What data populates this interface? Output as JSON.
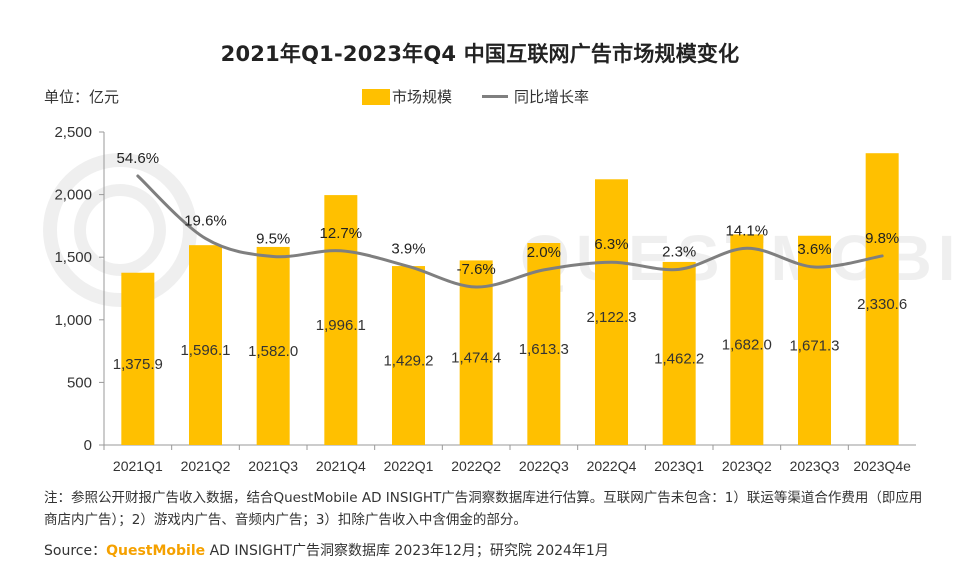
{
  "title": "2021年Q1-2023年Q4 中国互联网广告市场规模变化",
  "unit_label": "单位：亿元",
  "legend": {
    "bar_label": "市场规模",
    "line_label": "同比增长率"
  },
  "colors": {
    "bar": "#ffc000",
    "line": "#7f7f7f"
  },
  "watermark_icon": "questmobile-watermark-logo",
  "note": "注：参照公开财报广告收入数据，结合QuestMobile AD INSIGHT广告洞察数据库进行估算。互联网广告未包含：1）联运等渠道合作费用（即应用商店内广告）；2）游戏内广告、音频内广告；3）扣除广告收入中含佣金的部分。",
  "source": {
    "prefix": "Source：",
    "brand": "QuestMobile",
    "rest": " AD INSIGHT广告洞察数据库 2023年12月；研究院 2024年1月"
  },
  "chart_data": {
    "type": "bar",
    "categories": [
      "2021Q1",
      "2021Q2",
      "2021Q3",
      "2021Q4",
      "2022Q1",
      "2022Q2",
      "2022Q3",
      "2022Q4",
      "2023Q1",
      "2023Q2",
      "2023Q3",
      "2023Q4e"
    ],
    "series": [
      {
        "name": "市场规模",
        "type": "bar",
        "values": [
          1375.9,
          1596.1,
          1582.0,
          1996.1,
          1429.2,
          1474.4,
          1613.3,
          2122.3,
          1462.2,
          1682.0,
          1671.3,
          2330.6
        ],
        "labels": [
          "1,375.9",
          "1,596.1",
          "1,582.0",
          "1,996.1",
          "1,429.2",
          "1,474.4",
          "1,613.3",
          "2,122.3",
          "1,462.2",
          "1,682.0",
          "1,671.3",
          "2,330.6"
        ]
      },
      {
        "name": "同比增长率",
        "type": "line",
        "values": [
          54.6,
          19.6,
          9.5,
          12.7,
          3.9,
          -7.6,
          2.0,
          6.3,
          2.3,
          14.1,
          3.6,
          9.8
        ],
        "labels": [
          "54.6%",
          "19.6%",
          "9.5%",
          "12.7%",
          "3.9%",
          "-7.6%",
          "2.0%",
          "6.3%",
          "2.3%",
          "14.1%",
          "3.6%",
          "9.8%"
        ]
      }
    ],
    "y_ticks": [
      "0",
      "500",
      "1,000",
      "1,500",
      "2,000",
      "2,500"
    ],
    "ylim": [
      0,
      2500
    ],
    "legend_position": "top-center",
    "grid": false
  }
}
